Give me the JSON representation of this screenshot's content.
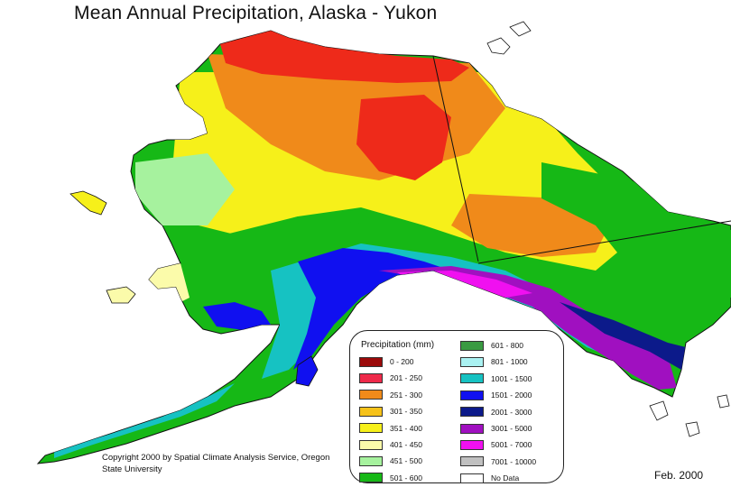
{
  "title": "Mean Annual Precipitation, Alaska - Yukon",
  "legend": {
    "title": "Precipitation (mm)",
    "items": [
      {
        "label": "0 - 200",
        "color": "#9b0a0a"
      },
      {
        "label": "201 - 250",
        "color": "#ee2a4a"
      },
      {
        "label": "251 - 300",
        "color": "#f08a1a"
      },
      {
        "label": "301 - 350",
        "color": "#f6c21a"
      },
      {
        "label": "351 - 400",
        "color": "#f6f01a"
      },
      {
        "label": "401 - 450",
        "color": "#fbfbaa"
      },
      {
        "label": "451 - 500",
        "color": "#a6f29e"
      },
      {
        "label": "501 - 600",
        "color": "#16b816"
      },
      {
        "label": "601 - 800",
        "color": "#3a9a42"
      },
      {
        "label": "801 - 1000",
        "color": "#aaf2f2"
      },
      {
        "label": "1001 - 1500",
        "color": "#16c2c2"
      },
      {
        "label": "1501 - 2000",
        "color": "#1010f0"
      },
      {
        "label": "2001 - 3000",
        "color": "#0c1a8a"
      },
      {
        "label": "3001 - 5000",
        "color": "#a010c0"
      },
      {
        "label": "5001 - 7000",
        "color": "#f010f0"
      },
      {
        "label": "7001 - 10000",
        "color": "#c0c0c0"
      },
      {
        "label": "No Data",
        "color": "#ffffff"
      }
    ]
  },
  "copyright": "Copyright 2000 by Spatial Climate Analysis Service, Oregon State University",
  "date": "Feb. 2000"
}
